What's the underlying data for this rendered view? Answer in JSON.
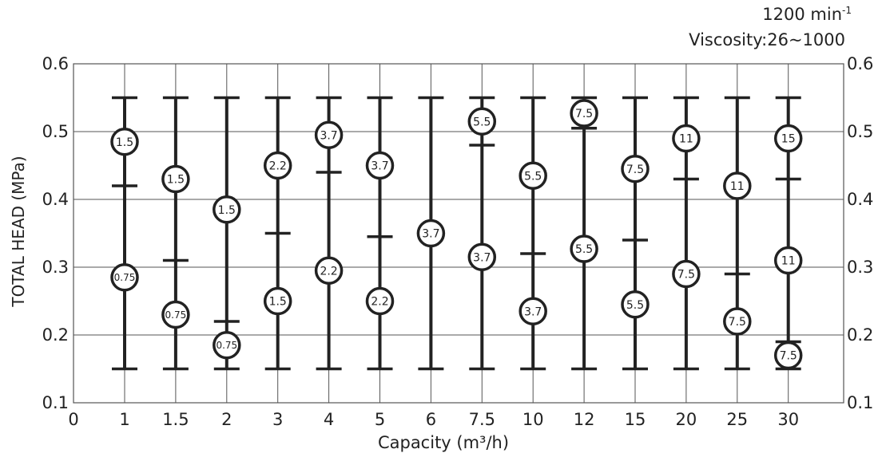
{
  "header": {
    "speed_value": "1200 min",
    "speed_exp": "-1",
    "viscosity": "Viscosity:26~1000"
  },
  "chart_data": {
    "type": "range-bar",
    "xlabel": "Capacity (m³/h)",
    "ylabel": "TOTAL HEAD (MPa)",
    "ylim": [
      0.1,
      0.6
    ],
    "y_ticks": [
      "0.1",
      "0.2",
      "0.3",
      "0.4",
      "0.5",
      "0.6"
    ],
    "x_origin_label": "0",
    "grid": true,
    "categories": [
      "1",
      "1.5",
      "2",
      "3",
      "4",
      "5",
      "6",
      "7.5",
      "10",
      "12",
      "15",
      "20",
      "25",
      "30"
    ],
    "ranges": [
      {
        "min": 0.15,
        "max": 0.55,
        "dividers": [
          0.42
        ],
        "labels": [
          {
            "y": 0.485,
            "text": "1.5"
          },
          {
            "y": 0.285,
            "text": "0.75"
          }
        ]
      },
      {
        "min": 0.15,
        "max": 0.55,
        "dividers": [
          0.31
        ],
        "labels": [
          {
            "y": 0.43,
            "text": "1.5"
          },
          {
            "y": 0.23,
            "text": "0.75"
          }
        ]
      },
      {
        "min": 0.15,
        "max": 0.55,
        "dividers": [
          0.22
        ],
        "labels": [
          {
            "y": 0.385,
            "text": "1.5"
          },
          {
            "y": 0.185,
            "text": "0.75"
          }
        ]
      },
      {
        "min": 0.15,
        "max": 0.55,
        "dividers": [
          0.35
        ],
        "labels": [
          {
            "y": 0.45,
            "text": "2.2"
          },
          {
            "y": 0.25,
            "text": "1.5"
          }
        ]
      },
      {
        "min": 0.15,
        "max": 0.55,
        "dividers": [
          0.44
        ],
        "labels": [
          {
            "y": 0.495,
            "text": "3.7"
          },
          {
            "y": 0.295,
            "text": "2.2"
          }
        ]
      },
      {
        "min": 0.15,
        "max": 0.55,
        "dividers": [
          0.345
        ],
        "labels": [
          {
            "y": 0.45,
            "text": "3.7"
          },
          {
            "y": 0.25,
            "text": "2.2"
          }
        ]
      },
      {
        "min": 0.15,
        "max": 0.55,
        "dividers": [],
        "labels": [
          {
            "y": 0.35,
            "text": "3.7"
          }
        ]
      },
      {
        "min": 0.15,
        "max": 0.55,
        "dividers": [
          0.48
        ],
        "labels": [
          {
            "y": 0.515,
            "text": "5.5"
          },
          {
            "y": 0.315,
            "text": "3.7"
          }
        ]
      },
      {
        "min": 0.15,
        "max": 0.55,
        "dividers": [
          0.32
        ],
        "labels": [
          {
            "y": 0.435,
            "text": "5.5"
          },
          {
            "y": 0.235,
            "text": "3.7"
          }
        ]
      },
      {
        "min": 0.15,
        "max": 0.55,
        "dividers": [
          0.505
        ],
        "labels": [
          {
            "y": 0.527,
            "text": "7.5"
          },
          {
            "y": 0.327,
            "text": "5.5"
          }
        ]
      },
      {
        "min": 0.15,
        "max": 0.55,
        "dividers": [
          0.34
        ],
        "labels": [
          {
            "y": 0.445,
            "text": "7.5"
          },
          {
            "y": 0.245,
            "text": "5.5"
          }
        ]
      },
      {
        "min": 0.15,
        "max": 0.55,
        "dividers": [
          0.43
        ],
        "labels": [
          {
            "y": 0.49,
            "text": "11"
          },
          {
            "y": 0.29,
            "text": "7.5"
          }
        ]
      },
      {
        "min": 0.15,
        "max": 0.55,
        "dividers": [
          0.29
        ],
        "labels": [
          {
            "y": 0.42,
            "text": "11"
          },
          {
            "y": 0.22,
            "text": "7.5"
          }
        ]
      },
      {
        "min": 0.15,
        "max": 0.55,
        "dividers": [
          0.43,
          0.19
        ],
        "labels": [
          {
            "y": 0.49,
            "text": "15"
          },
          {
            "y": 0.31,
            "text": "11"
          },
          {
            "y": 0.17,
            "text": "7.5"
          }
        ]
      }
    ],
    "colors": {
      "bar": "#222222",
      "grid": "#555555",
      "circle_fill": "#ffffff"
    }
  }
}
